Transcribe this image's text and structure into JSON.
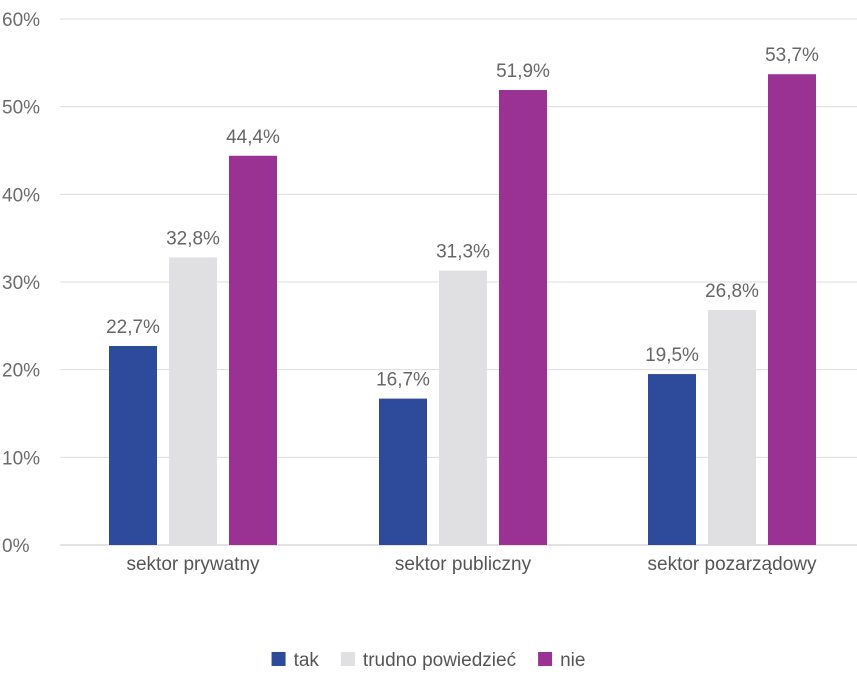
{
  "chart_data": {
    "type": "bar",
    "title": "",
    "xlabel": "",
    "ylabel": "",
    "categories": [
      "sektor prywatny",
      "sektor publiczny",
      "sektor pozarządowy"
    ],
    "series": [
      {
        "name": "tak",
        "color": "#2e4b9b",
        "values": [
          22.7,
          16.7,
          19.5
        ],
        "labels": [
          "22,7%",
          "16,7%",
          "19,5%"
        ]
      },
      {
        "name": "trudno powiedzieć",
        "color": "#e0e0e2",
        "values": [
          32.8,
          31.3,
          26.8
        ],
        "labels": [
          "32,8%",
          "31,3%",
          "26,8%"
        ]
      },
      {
        "name": "nie",
        "color": "#9a3293",
        "values": [
          44.4,
          51.9,
          53.7
        ],
        "labels": [
          "44,4%",
          "51,9%",
          "53,7%"
        ]
      }
    ],
    "ylim": [
      0,
      60
    ],
    "yticks": [
      0,
      10,
      20,
      30,
      40,
      50,
      60
    ],
    "ytick_labels": [
      "0%",
      "10%",
      "20%",
      "30%",
      "40%",
      "50%",
      "60%"
    ],
    "grid": true,
    "legend_position": "bottom"
  }
}
